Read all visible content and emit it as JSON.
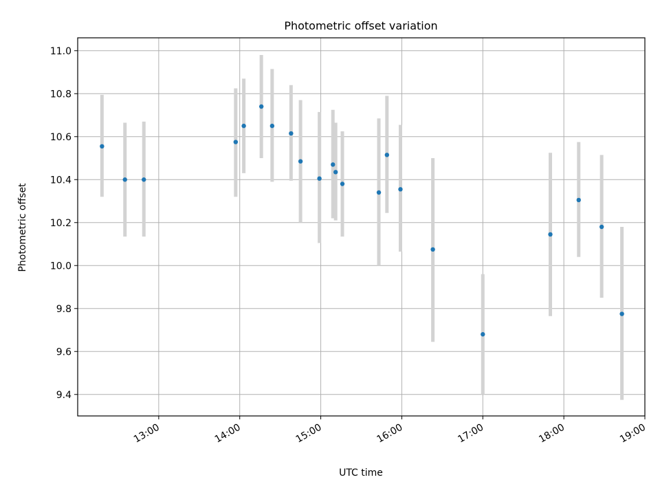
{
  "chart_data": {
    "type": "scatter",
    "title": "Photometric offset variation",
    "xlabel": "UTC time",
    "ylabel": "Photometric offset",
    "x_tick_labels": [
      "13:00",
      "14:00",
      "15:00",
      "16:00",
      "17:00",
      "18:00",
      "19:00"
    ],
    "y_tick_labels": [
      "9.4",
      "9.6",
      "9.8",
      "10.0",
      "10.2",
      "10.4",
      "10.6",
      "10.8",
      "11.0"
    ],
    "y_ticks": [
      9.4,
      9.6,
      9.8,
      10.0,
      10.2,
      10.4,
      10.6,
      10.8,
      11.0
    ],
    "xlim": [
      "12:00",
      "19:00"
    ],
    "ylim": [
      9.3,
      11.06
    ],
    "grid": true,
    "point_color": "#1f77b4",
    "errorbar_color": "#d3d3d3",
    "series": [
      {
        "x": [
          "12:18",
          "12:35",
          "12:49",
          "13:57",
          "14:03",
          "14:16",
          "14:24",
          "14:38",
          "14:45",
          "14:59",
          "15:09",
          "15:11",
          "15:16",
          "15:43",
          "15:49",
          "15:59",
          "16:23",
          "17:00",
          "17:50",
          "18:11",
          "18:28",
          "18:43"
        ],
        "y": [
          10.555,
          10.4,
          10.4,
          10.575,
          10.65,
          10.74,
          10.65,
          10.615,
          10.485,
          10.405,
          10.47,
          10.435,
          10.38,
          10.34,
          10.515,
          10.355,
          10.075,
          9.68,
          10.145,
          10.305,
          10.18,
          9.775
        ],
        "err_low": [
          10.32,
          10.135,
          10.135,
          10.32,
          10.43,
          10.5,
          10.39,
          10.395,
          10.2,
          10.105,
          10.22,
          10.21,
          10.135,
          10.0,
          10.245,
          10.065,
          9.645,
          9.4,
          9.765,
          10.04,
          9.85,
          9.375
        ],
        "err_high": [
          10.795,
          10.665,
          10.67,
          10.825,
          10.87,
          10.98,
          10.915,
          10.84,
          10.77,
          10.715,
          10.725,
          10.665,
          10.625,
          10.685,
          10.79,
          10.655,
          10.5,
          9.96,
          10.525,
          10.575,
          10.515,
          10.18
        ]
      }
    ]
  }
}
